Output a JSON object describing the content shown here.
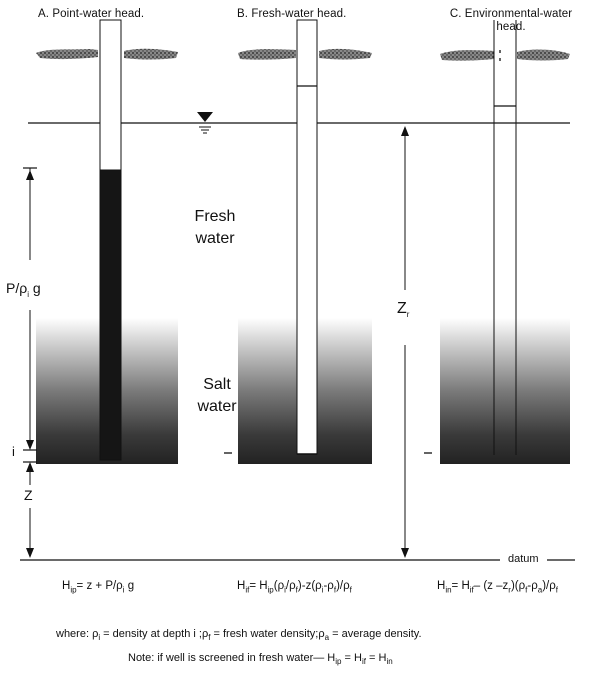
{
  "panels": {
    "a_title": "A. Point-water head.",
    "b_title": "B. Fresh-water head.",
    "c_title": "C. Environmental-water head."
  },
  "labels": {
    "fresh_1": "Fresh",
    "fresh_2": "water",
    "salt_1": "Salt",
    "salt_2": "water",
    "pressure": "P/ρ",
    "pressure_sub": "i",
    "pressure_g": "g",
    "zr": "Z",
    "zr_sub": "r",
    "i": "i",
    "z": "Z",
    "datum": "datum"
  },
  "formulas": {
    "a_lhs": "H",
    "a_lhs_sub": "ip",
    "a_rhs": "= z + P/ρ",
    "a_rhs_sub": "i",
    "a_rhs_end": " g",
    "b_text": "H",
    "b_sub": "if",
    "b_rest": "= H",
    "b_sub2": "ip",
    "b_tail": "(ρ",
    "b_tail_sub": "i",
    "b_tail2": "/ρ",
    "b_tail2_sub": "f",
    "b_tail3": ")-z(ρ",
    "b_tail3_sub": "i",
    "b_tail4": "-ρ",
    "b_tail4_sub": "f",
    "b_tail5": ")/ρ",
    "b_tail5_sub": "f",
    "c_text": "H",
    "c_sub": "in",
    "c_rest": "= H",
    "c_sub2": "if",
    "c_tail": "– (z –z",
    "c_tail_sub": "r",
    "c_tail2": ")(ρ",
    "c_tail2_sub": "f",
    "c_tail3": "-ρ",
    "c_tail3_sub": "a",
    "c_tail4": ")/ρ",
    "c_tail4_sub": "f"
  },
  "notes": {
    "where_1": "where: ρ",
    "where_1_sub": "i",
    "where_2": " = density at depth i ;ρ",
    "where_2_sub": "f",
    "where_3": " = fresh water density;ρ",
    "where_3_sub": "a",
    "where_4": " = average density.",
    "note_1": "Note: if well is screened in fresh water—  H",
    "note_1_sub": "ip",
    "note_2": " = H",
    "note_2_sub": "if",
    "note_3": " = H",
    "note_3_sub": "in"
  }
}
